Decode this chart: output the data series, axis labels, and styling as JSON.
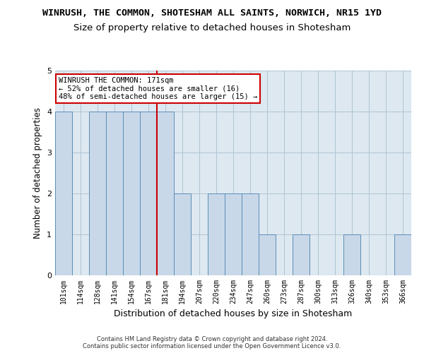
{
  "title": "WINRUSH, THE COMMON, SHOTESHAM ALL SAINTS, NORWICH, NR15 1YD",
  "subtitle": "Size of property relative to detached houses in Shotesham",
  "xlabel": "Distribution of detached houses by size in Shotesham",
  "ylabel": "Number of detached properties",
  "footer_line1": "Contains HM Land Registry data © Crown copyright and database right 2024.",
  "footer_line2": "Contains public sector information licensed under the Open Government Licence v3.0.",
  "bar_labels": [
    "101sqm",
    "114sqm",
    "128sqm",
    "141sqm",
    "154sqm",
    "167sqm",
    "181sqm",
    "194sqm",
    "207sqm",
    "220sqm",
    "234sqm",
    "247sqm",
    "260sqm",
    "273sqm",
    "287sqm",
    "300sqm",
    "313sqm",
    "326sqm",
    "340sqm",
    "353sqm",
    "366sqm"
  ],
  "bar_values": [
    4,
    0,
    4,
    4,
    4,
    4,
    4,
    2,
    0,
    2,
    2,
    2,
    1,
    0,
    1,
    0,
    0,
    1,
    0,
    0,
    1
  ],
  "bar_color": "#c8d8e8",
  "bar_edge_color": "#5b8db8",
  "annotation_box_text": "WINRUSH THE COMMON: 171sqm\n← 52% of detached houses are smaller (16)\n48% of semi-detached houses are larger (15) →",
  "annotation_box_color": "#ffffff",
  "annotation_box_edge_color": "#cc0000",
  "vline_x_index": 5.5,
  "vline_color": "#cc0000",
  "ylim": [
    0,
    5
  ],
  "yticks": [
    0,
    1,
    2,
    3,
    4,
    5
  ],
  "background_color": "#ffffff",
  "plot_bg_color": "#dde8f0",
  "grid_color": "#b0c4d4",
  "title_fontsize": 9.5,
  "subtitle_fontsize": 9.5,
  "ylabel_fontsize": 8.5,
  "xlabel_fontsize": 9,
  "tick_fontsize": 7,
  "annotation_fontsize": 7.5,
  "footer_fontsize": 6
}
